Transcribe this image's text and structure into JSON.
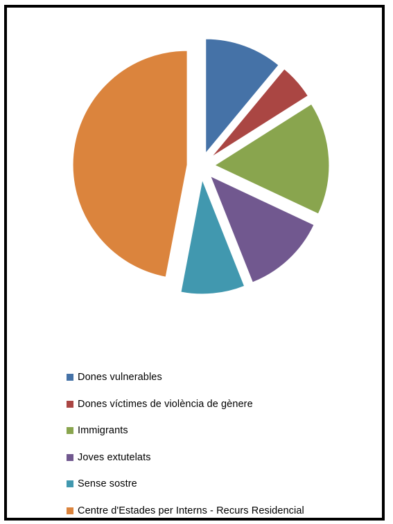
{
  "chart_data": {
    "type": "pie",
    "exploded": true,
    "legend_position": "bottom",
    "slices": [
      {
        "name": "Dones vulnerables",
        "value": 11,
        "color": "#4572A7"
      },
      {
        "name": "Dones víctimes de violència de gènere",
        "value": 5,
        "color": "#AA4643"
      },
      {
        "name": "Immigrants",
        "value": 16,
        "color": "#89A54E"
      },
      {
        "name": "Joves extutelats",
        "value": 12,
        "color": "#71588F"
      },
      {
        "name": "Sense sostre",
        "value": 9,
        "color": "#4198AF"
      },
      {
        "name": "Centre d'Estades per Interns - Recurs Residencial",
        "value": 47,
        "color": "#DB843D"
      }
    ]
  }
}
